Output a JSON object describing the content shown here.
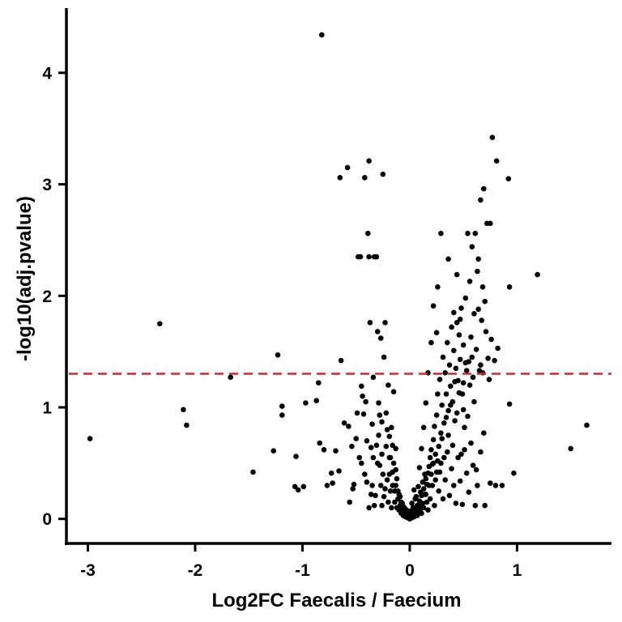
{
  "chart_data": {
    "type": "scatter",
    "xlabel": "Log2FC Faecalis / Faecium",
    "ylabel": "-log10(adj.pvalue)",
    "xlim": [
      -3.2,
      1.88
    ],
    "ylim": [
      -0.22,
      4.58
    ],
    "xticks": [
      -3,
      -2,
      -1,
      0,
      1
    ],
    "yticks": [
      0,
      1,
      2,
      3,
      4
    ],
    "threshold": {
      "y": 1.301,
      "color": "#d62728",
      "style": "dashed"
    },
    "point_color": "#000000",
    "axis_color": "#000000",
    "series": [
      {
        "points": [
          [
            -0.82,
            4.34
          ],
          [
            -2.33,
            1.75
          ],
          [
            -2.98,
            0.72
          ],
          [
            -2.11,
            0.98
          ],
          [
            -2.08,
            0.84
          ],
          [
            -1.67,
            1.27
          ],
          [
            -1.46,
            0.42
          ],
          [
            -1.23,
            1.47
          ],
          [
            -1.19,
            1.01
          ],
          [
            -1.19,
            0.93
          ],
          [
            -1.27,
            0.61
          ],
          [
            -1.06,
            0.56
          ],
          [
            -1.07,
            0.29
          ],
          [
            -1.04,
            0.26
          ],
          [
            -0.99,
            0.29
          ],
          [
            -0.97,
            1.04
          ],
          [
            -0.87,
            1.06
          ],
          [
            -0.85,
            1.22
          ],
          [
            -0.84,
            0.68
          ],
          [
            -0.8,
            0.62
          ],
          [
            -0.77,
            0.3
          ],
          [
            -0.73,
            0.41
          ],
          [
            -0.72,
            0.32
          ],
          [
            -0.69,
            0.61
          ],
          [
            -0.66,
            0.43
          ],
          [
            -0.65,
            3.06
          ],
          [
            -0.64,
            1.42
          ],
          [
            -0.61,
            0.86
          ],
          [
            -0.58,
            3.15
          ],
          [
            -0.57,
            0.83
          ],
          [
            -0.56,
            0.15
          ],
          [
            -0.54,
            0.65
          ],
          [
            -0.53,
            0.27
          ],
          [
            -0.52,
            0.31
          ],
          [
            -0.5,
            0.72
          ],
          [
            -0.48,
            2.35
          ],
          [
            -0.47,
            0.55
          ],
          [
            -0.46,
            2.35
          ],
          [
            -0.45,
            1.19
          ],
          [
            -0.43,
            0.94
          ],
          [
            -0.42,
            3.06
          ],
          [
            -0.41,
            1.05
          ],
          [
            -0.4,
            0.33
          ],
          [
            -0.39,
            2.56
          ],
          [
            -0.38,
            3.21
          ],
          [
            -0.38,
            2.35
          ],
          [
            -0.37,
            1.76
          ],
          [
            -0.36,
            0.64
          ],
          [
            -0.35,
            0.85
          ],
          [
            -0.34,
            1.27
          ],
          [
            -0.33,
            2.35
          ],
          [
            -0.32,
            0.21
          ],
          [
            -0.31,
            2.35
          ],
          [
            -0.3,
            1.68
          ],
          [
            -0.29,
            1.04
          ],
          [
            -0.28,
            0.48
          ],
          [
            -0.27,
            1.62
          ],
          [
            -0.26,
            0.12
          ],
          [
            -0.25,
            3.09
          ],
          [
            -0.24,
            1.45
          ],
          [
            -0.23,
            1.76
          ],
          [
            -0.22,
            0.95
          ],
          [
            -0.21,
            0.35
          ],
          [
            -0.2,
            1.2
          ],
          [
            -0.19,
            0.74
          ],
          [
            -0.18,
            0.55
          ],
          [
            -0.17,
            0.82
          ],
          [
            -0.16,
            0.42
          ],
          [
            -0.15,
            1.14
          ],
          [
            -0.14,
            0.25
          ],
          [
            -0.13,
            0.63
          ],
          [
            -0.12,
            0.36
          ],
          [
            -0.11,
            0.18
          ],
          [
            -0.1,
            0.22
          ],
          [
            -0.09,
            0.12
          ],
          [
            -0.08,
            0.15
          ],
          [
            -0.07,
            0.09
          ],
          [
            -0.06,
            0.11
          ],
          [
            -0.05,
            0.05
          ],
          [
            -0.04,
            0.07
          ],
          [
            -0.03,
            0.03
          ],
          [
            -0.02,
            0.05
          ],
          [
            -0.01,
            0.02
          ],
          [
            -0.45,
            0.5
          ],
          [
            -0.42,
            0.4
          ],
          [
            -0.38,
            0.1
          ],
          [
            -0.35,
            0.3
          ],
          [
            -0.33,
            0.12
          ],
          [
            -0.3,
            0.5
          ],
          [
            -0.29,
            0.75
          ],
          [
            -0.27,
            0.3
          ],
          [
            -0.26,
            0.58
          ],
          [
            -0.25,
            0.4
          ],
          [
            -0.24,
            0.2
          ],
          [
            -0.22,
            0.65
          ],
          [
            -0.21,
            0.8
          ],
          [
            -0.2,
            0.15
          ],
          [
            -0.19,
            0.4
          ],
          [
            -0.18,
            0.25
          ],
          [
            -0.17,
            0.1
          ],
          [
            -0.16,
            0.3
          ],
          [
            -0.15,
            0.5
          ],
          [
            -0.14,
            0.15
          ],
          [
            -0.13,
            0.3
          ],
          [
            -0.12,
            0.1
          ],
          [
            -0.11,
            0.25
          ],
          [
            -0.1,
            0.08
          ],
          [
            -0.09,
            0.2
          ],
          [
            -0.08,
            0.05
          ],
          [
            -0.07,
            0.14
          ],
          [
            -0.06,
            0.03
          ],
          [
            -0.05,
            0.1
          ],
          [
            -0.04,
            0.02
          ],
          [
            -0.03,
            0.08
          ],
          [
            -0.02,
            0.01
          ],
          [
            -0.01,
            0.04
          ],
          [
            -0.36,
            0.22
          ],
          [
            -0.31,
            0.66
          ],
          [
            -0.28,
            0.93
          ],
          [
            -0.23,
            0.27
          ],
          [
            -0.19,
            0.55
          ],
          [
            -0.16,
            0.66
          ],
          [
            -0.13,
            0.44
          ],
          [
            -0.49,
            0.95
          ],
          [
            -0.44,
            1.1
          ],
          [
            -0.4,
            0.7
          ],
          [
            -0.34,
            0.55
          ],
          [
            -0.26,
            0.87
          ],
          [
            0.0,
            0.0
          ],
          [
            0.01,
            0.03
          ],
          [
            0.02,
            0.01
          ],
          [
            0.03,
            0.06
          ],
          [
            0.04,
            0.02
          ],
          [
            0.05,
            0.09
          ],
          [
            0.06,
            0.04
          ],
          [
            0.07,
            0.12
          ],
          [
            0.08,
            0.06
          ],
          [
            0.09,
            0.16
          ],
          [
            0.1,
            0.09
          ],
          [
            0.11,
            0.21
          ],
          [
            0.12,
            0.14
          ],
          [
            0.13,
            0.27
          ],
          [
            0.14,
            0.22
          ],
          [
            0.15,
            0.36
          ],
          [
            0.16,
            0.31
          ],
          [
            0.17,
            0.41
          ],
          [
            0.18,
            0.47
          ],
          [
            0.19,
            0.55
          ],
          [
            0.2,
            0.62
          ],
          [
            0.21,
            0.49
          ],
          [
            0.22,
            0.71
          ],
          [
            0.23,
            0.83
          ],
          [
            0.24,
            0.58
          ],
          [
            0.25,
            0.93
          ],
          [
            0.26,
            1.12
          ],
          [
            0.27,
            0.65
          ],
          [
            0.28,
            1.25
          ],
          [
            0.29,
            0.77
          ],
          [
            0.3,
            1.02
          ],
          [
            0.31,
            1.45
          ],
          [
            0.32,
            0.86
          ],
          [
            0.33,
            1.31
          ],
          [
            0.34,
            1.12
          ],
          [
            0.35,
            1.58
          ],
          [
            0.36,
            0.97
          ],
          [
            0.37,
            1.38
          ],
          [
            0.38,
            1.19
          ],
          [
            0.39,
            1.72
          ],
          [
            0.4,
            1.05
          ],
          [
            0.41,
            1.51
          ],
          [
            0.42,
            0.88
          ],
          [
            0.43,
            1.35
          ],
          [
            0.44,
            1.76
          ],
          [
            0.45,
            1.24
          ],
          [
            0.46,
            1.65
          ],
          [
            0.47,
            1.43
          ],
          [
            0.48,
            1.89
          ],
          [
            0.49,
            1.12
          ],
          [
            0.5,
            1.56
          ],
          [
            0.51,
            0.82
          ],
          [
            0.52,
            1.98
          ],
          [
            0.53,
            1.33
          ],
          [
            0.54,
            2.56
          ],
          [
            0.55,
            1.41
          ],
          [
            0.56,
            2.13
          ],
          [
            0.57,
            1.63
          ],
          [
            0.58,
            2.44
          ],
          [
            0.59,
            1.27
          ],
          [
            0.6,
            1.84
          ],
          [
            0.61,
            2.56
          ],
          [
            0.62,
            1.52
          ],
          [
            0.63,
            2.22
          ],
          [
            0.64,
            2.33
          ],
          [
            0.65,
            1.33
          ],
          [
            0.66,
            2.86
          ],
          [
            0.67,
            1.78
          ],
          [
            0.68,
            2.08
          ],
          [
            0.69,
            2.96
          ],
          [
            0.7,
            1.95
          ],
          [
            0.71,
            1.68
          ],
          [
            0.72,
            2.65
          ],
          [
            0.73,
            1.44
          ],
          [
            0.74,
            1.25
          ],
          [
            0.75,
            2.65
          ],
          [
            0.76,
            1.61
          ],
          [
            0.77,
            3.42
          ],
          [
            0.79,
            1.42
          ],
          [
            0.81,
            3.21
          ],
          [
            0.82,
            1.53
          ],
          [
            0.92,
            3.05
          ],
          [
            0.93,
            2.08
          ],
          [
            0.93,
            1.03
          ],
          [
            0.97,
            0.41
          ],
          [
            1.19,
            2.19
          ],
          [
            1.65,
            0.84
          ],
          [
            1.5,
            0.63
          ],
          [
            0.86,
            0.3
          ],
          [
            0.8,
            0.3
          ],
          [
            0.75,
            0.32
          ],
          [
            0.7,
            0.12
          ],
          [
            0.69,
            0.77
          ],
          [
            0.68,
            1.31
          ],
          [
            0.66,
            0.6
          ],
          [
            0.63,
            0.3
          ],
          [
            0.61,
            0.12
          ],
          [
            0.59,
            0.48
          ],
          [
            0.57,
            0.68
          ],
          [
            0.55,
            0.24
          ],
          [
            0.53,
            0.41
          ],
          [
            0.51,
            0.62
          ],
          [
            0.49,
            0.13
          ],
          [
            0.47,
            0.34
          ],
          [
            0.45,
            0.55
          ],
          [
            0.43,
            0.14
          ],
          [
            0.41,
            0.3
          ],
          [
            0.39,
            0.45
          ],
          [
            0.37,
            0.21
          ],
          [
            0.35,
            0.6
          ],
          [
            0.33,
            0.35
          ],
          [
            0.31,
            0.18
          ],
          [
            0.29,
            0.5
          ],
          [
            0.27,
            0.25
          ],
          [
            0.25,
            0.42
          ],
          [
            0.23,
            0.12
          ],
          [
            0.21,
            0.3
          ],
          [
            0.19,
            0.18
          ],
          [
            0.17,
            0.08
          ],
          [
            0.15,
            0.22
          ],
          [
            0.13,
            0.1
          ],
          [
            0.11,
            0.05
          ],
          [
            0.09,
            0.13
          ],
          [
            0.07,
            0.03
          ],
          [
            0.05,
            0.18
          ],
          [
            0.03,
            0.1
          ],
          [
            0.02,
            0.14
          ],
          [
            0.01,
            0.07
          ],
          [
            0.04,
            0.26
          ],
          [
            0.06,
            0.2
          ],
          [
            0.08,
            0.29
          ],
          [
            0.1,
            0.24
          ],
          [
            0.12,
            0.33
          ],
          [
            0.14,
            0.4
          ],
          [
            0.16,
            0.15
          ],
          [
            0.18,
            0.3
          ],
          [
            0.2,
            0.4
          ],
          [
            0.22,
            0.5
          ],
          [
            0.24,
            0.35
          ],
          [
            0.26,
            0.52
          ],
          [
            0.28,
            0.42
          ],
          [
            0.3,
            0.72
          ],
          [
            0.32,
            0.55
          ],
          [
            0.34,
            0.91
          ],
          [
            0.36,
            0.75
          ],
          [
            0.38,
            1.02
          ],
          [
            0.4,
            0.66
          ],
          [
            0.42,
            1.23
          ],
          [
            0.44,
            0.95
          ],
          [
            0.46,
            1.13
          ],
          [
            0.48,
            0.58
          ],
          [
            0.5,
            0.98
          ],
          [
            0.52,
            1.4
          ],
          [
            0.54,
            0.92
          ],
          [
            0.56,
            1.2
          ],
          [
            0.58,
            1.45
          ],
          [
            0.6,
            1.05
          ],
          [
            0.62,
            0.44
          ],
          [
            0.64,
            1.88
          ],
          [
            0.66,
            1.38
          ],
          [
            0.22,
            1.91
          ],
          [
            0.25,
            1.67
          ],
          [
            0.29,
            2.56
          ],
          [
            0.26,
            2.08
          ],
          [
            0.2,
            1.58
          ],
          [
            0.17,
            1.31
          ],
          [
            0.15,
            1.04
          ],
          [
            0.13,
            0.82
          ],
          [
            0.11,
            0.63
          ],
          [
            0.09,
            0.46
          ],
          [
            0.36,
            2.33
          ],
          [
            0.41,
            1.85
          ],
          [
            0.44,
            2.19
          ],
          [
            0.47,
            1.79
          ],
          [
            0.5,
            1.22
          ]
        ]
      }
    ]
  }
}
